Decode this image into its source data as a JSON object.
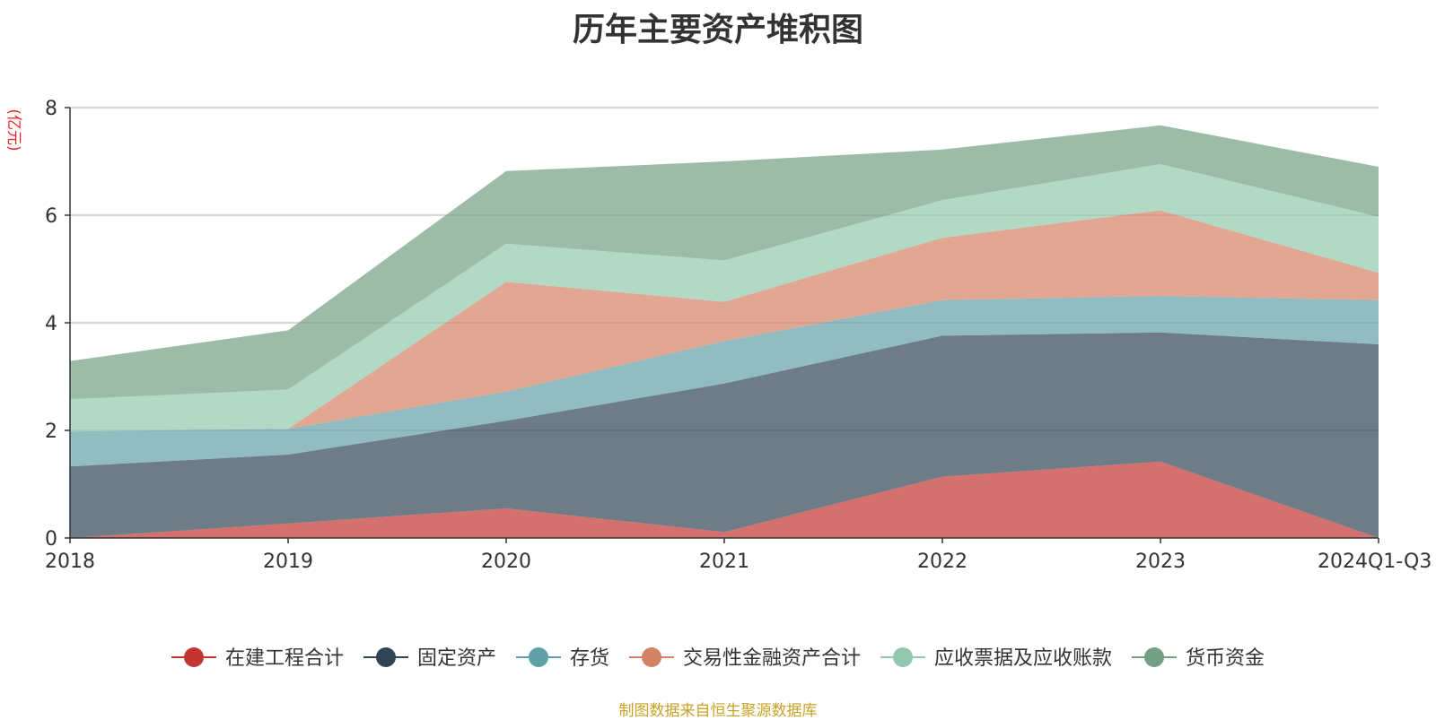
{
  "chart_data": {
    "type": "area",
    "stacked": true,
    "title": "历年主要资产堆积图",
    "ylabel": "(亿元)",
    "xlabel": "",
    "ylim": [
      0,
      8
    ],
    "yticks": [
      0,
      2,
      4,
      6,
      8
    ],
    "categories": [
      "2018",
      "2019",
      "2020",
      "2021",
      "2022",
      "2023",
      "2024Q1-Q3"
    ],
    "series": [
      {
        "name": "在建工程合计",
        "color": "#c23531",
        "values": [
          0.0,
          0.27,
          0.55,
          0.11,
          1.14,
          1.42,
          0.0
        ]
      },
      {
        "name": "固定资产",
        "color": "#2f4554",
        "values": [
          1.33,
          1.28,
          1.63,
          2.76,
          2.62,
          2.4,
          3.6
        ]
      },
      {
        "name": "存货",
        "color": "#61a0a8",
        "values": [
          0.65,
          0.48,
          0.54,
          0.79,
          0.66,
          0.68,
          0.82
        ]
      },
      {
        "name": "交易性金融资产合计",
        "color": "#d48265",
        "values": [
          0.0,
          0.0,
          2.04,
          0.73,
          1.16,
          1.59,
          0.51
        ]
      },
      {
        "name": "应收票据及应收账款",
        "color": "#91c7ae",
        "values": [
          0.6,
          0.73,
          0.71,
          0.77,
          0.7,
          0.86,
          1.04
        ]
      },
      {
        "name": "货币资金",
        "color": "#749f83",
        "values": [
          0.71,
          1.1,
          1.35,
          1.84,
          0.94,
          0.72,
          0.93
        ]
      }
    ]
  },
  "source_note": "制图数据来自恒生聚源数据库"
}
